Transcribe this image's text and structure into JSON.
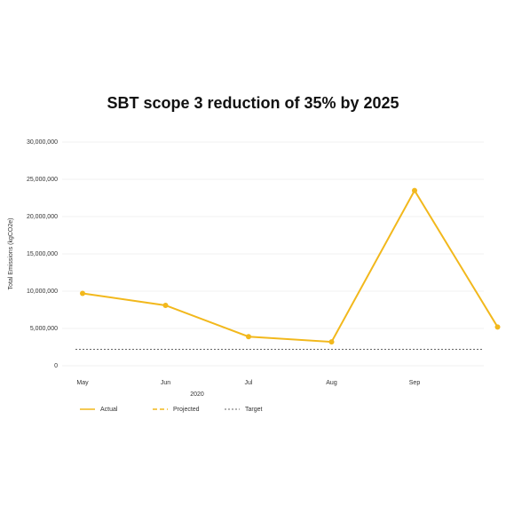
{
  "chart_data": {
    "type": "line",
    "title": "SBT scope 3 reduction of 35% by 2025",
    "ylabel": "Total Emissions (kgCO2e)",
    "xlabel": "2020",
    "categories": [
      "May",
      "Jun",
      "Jul",
      "Aug",
      "Sep",
      null
    ],
    "series": [
      {
        "name": "Actual",
        "color": "#f2b81c",
        "dash": "solid",
        "values": [
          9700000,
          8100000,
          3900000,
          3200000,
          23500000,
          5200000
        ]
      },
      {
        "name": "Projected",
        "color": "#f2b81c",
        "dash": "dashed",
        "values": [
          null,
          null,
          null,
          null,
          null,
          null
        ]
      }
    ],
    "target": {
      "name": "Target",
      "color": "#666666",
      "dash": "dotted",
      "value": 2200000
    },
    "ylim": [
      0,
      30000000
    ],
    "yticks": [
      0,
      {
        "value": 5000000,
        "label": "5,000,000"
      },
      {
        "value": 10000000,
        "label": "10,000,000"
      },
      {
        "value": 15000000,
        "label": "15,000,000"
      },
      {
        "value": 20000000,
        "label": "20,000,000"
      },
      {
        "value": 25000000,
        "label": "25,000,000"
      },
      {
        "value": 30000000,
        "label": "30,000,000"
      }
    ],
    "grid": true
  }
}
